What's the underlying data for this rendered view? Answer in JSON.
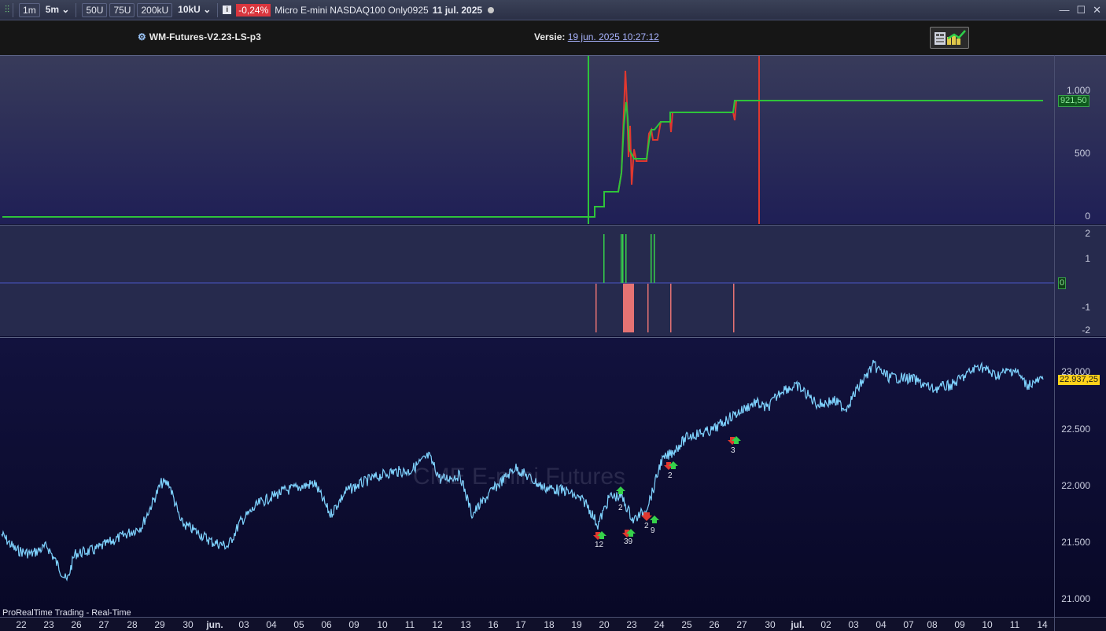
{
  "toolbar": {
    "intervals": [
      "1m",
      "5m",
      "50U",
      "75U",
      "200kU",
      "10kU"
    ],
    "change": "-0,24%",
    "instrument": "Micro E-mini NASDAQ100 Only0925",
    "date": "11 jul. 2025"
  },
  "header": {
    "system_name": "WM-Futures-V2.23-LS-p3",
    "version_label": "Versie:",
    "version_value": "19 jun. 2025 10:27:12"
  },
  "equity_panel": {
    "y_labels": [
      "1.000",
      "500",
      "0"
    ],
    "last_value": "921,50"
  },
  "position_panel": {
    "y_labels": [
      "2",
      "1",
      "0",
      "-1",
      "-2"
    ]
  },
  "price_panel": {
    "y_labels": [
      "23.000",
      "22.500",
      "22.000",
      "21.500",
      "21.000"
    ],
    "last_price": "22.937,25",
    "watermark": "CME E-mini Futures",
    "footer": "ProRealTime Trading - Real-Time",
    "trade_counts": [
      "12",
      "39",
      "2",
      "2",
      "9",
      "2",
      "3"
    ]
  },
  "x_axis": {
    "labels": [
      "22",
      "23",
      "26",
      "27",
      "28",
      "29",
      "30",
      "jun.",
      "03",
      "04",
      "05",
      "06",
      "09",
      "10",
      "11",
      "12",
      "13",
      "16",
      "17",
      "18",
      "19",
      "20",
      "23",
      "24",
      "25",
      "26",
      "27",
      "30",
      "jul.",
      "02",
      "03",
      "04",
      "07",
      "08",
      "09",
      "10",
      "11",
      "14"
    ]
  },
  "colors": {
    "equity_up": "#2ec43a",
    "equity_down": "#e0382f",
    "price_line": "#7fd3ff",
    "long_bar": "#36d14a",
    "short_bar": "#e57373"
  }
}
